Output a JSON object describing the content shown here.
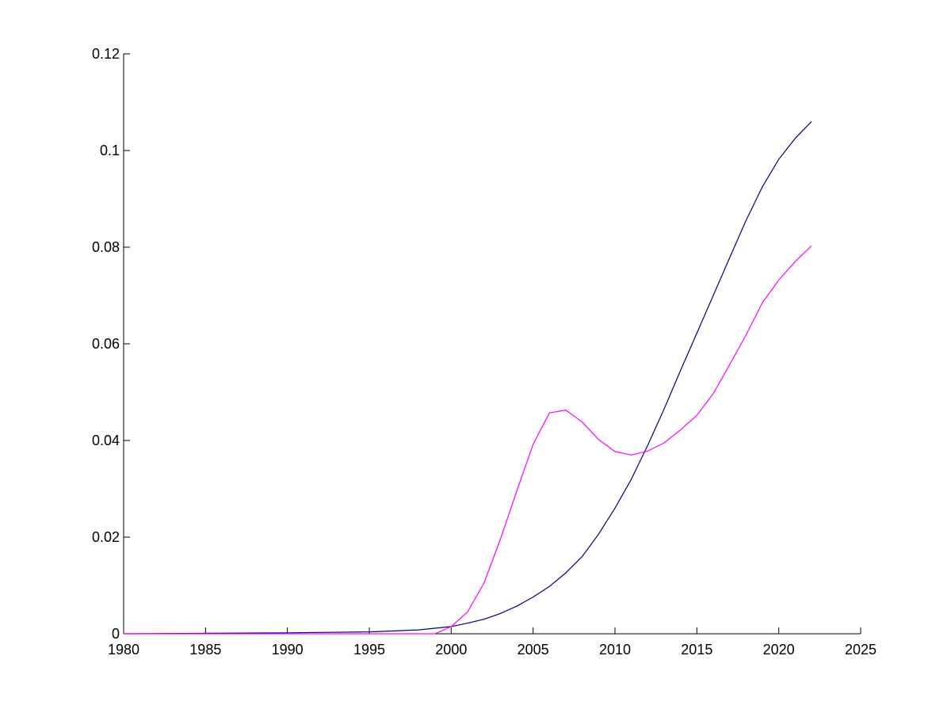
{
  "chart_data": {
    "type": "line",
    "title": "",
    "xlabel": "",
    "ylabel": "",
    "xlim": [
      1980,
      2025
    ],
    "ylim": [
      0,
      0.12
    ],
    "xticks": [
      "1980",
      "1985",
      "1990",
      "1995",
      "2000",
      "2005",
      "2010",
      "2015",
      "2020",
      "2025"
    ],
    "yticks": [
      "0",
      "0.02",
      "0.04",
      "0.06",
      "0.08",
      "0.1",
      "0.12"
    ],
    "grid": false,
    "legend": "none",
    "series": [
      {
        "color": "#00007f",
        "points": [
          [
            1980,
            0
          ],
          [
            1985,
            0.0001
          ],
          [
            1990,
            0.0002
          ],
          [
            1995,
            0.0004
          ],
          [
            1998,
            0.0008
          ],
          [
            2000,
            0.0015
          ],
          [
            2001,
            0.0022
          ],
          [
            2002,
            0.003
          ],
          [
            2003,
            0.0042
          ],
          [
            2004,
            0.0057
          ],
          [
            2005,
            0.0076
          ],
          [
            2006,
            0.0098
          ],
          [
            2007,
            0.0126
          ],
          [
            2008,
            0.016
          ],
          [
            2009,
            0.0206
          ],
          [
            2010,
            0.026
          ],
          [
            2011,
            0.032
          ],
          [
            2012,
            0.039
          ],
          [
            2013,
            0.0465
          ],
          [
            2014,
            0.0545
          ],
          [
            2015,
            0.0622
          ],
          [
            2016,
            0.07
          ],
          [
            2017,
            0.0778
          ],
          [
            2018,
            0.0855
          ],
          [
            2019,
            0.0925
          ],
          [
            2020,
            0.0982
          ],
          [
            2021,
            0.1025
          ],
          [
            2022,
            0.106
          ]
        ]
      },
      {
        "color": "#ff00ff",
        "points": [
          [
            1980,
            0
          ],
          [
            1999,
            0
          ],
          [
            2000,
            0.0015
          ],
          [
            2001,
            0.0045
          ],
          [
            2002,
            0.0105
          ],
          [
            2003,
            0.0195
          ],
          [
            2004,
            0.0295
          ],
          [
            2005,
            0.0392
          ],
          [
            2006,
            0.0457
          ],
          [
            2007,
            0.0463
          ],
          [
            2008,
            0.0438
          ],
          [
            2009,
            0.0402
          ],
          [
            2010,
            0.0377
          ],
          [
            2011,
            0.037
          ],
          [
            2012,
            0.0378
          ],
          [
            2013,
            0.0395
          ],
          [
            2014,
            0.0422
          ],
          [
            2015,
            0.0452
          ],
          [
            2016,
            0.0497
          ],
          [
            2017,
            0.0557
          ],
          [
            2018,
            0.0618
          ],
          [
            2019,
            0.0685
          ],
          [
            2020,
            0.0732
          ],
          [
            2021,
            0.077
          ],
          [
            2022,
            0.0803
          ]
        ]
      }
    ]
  }
}
